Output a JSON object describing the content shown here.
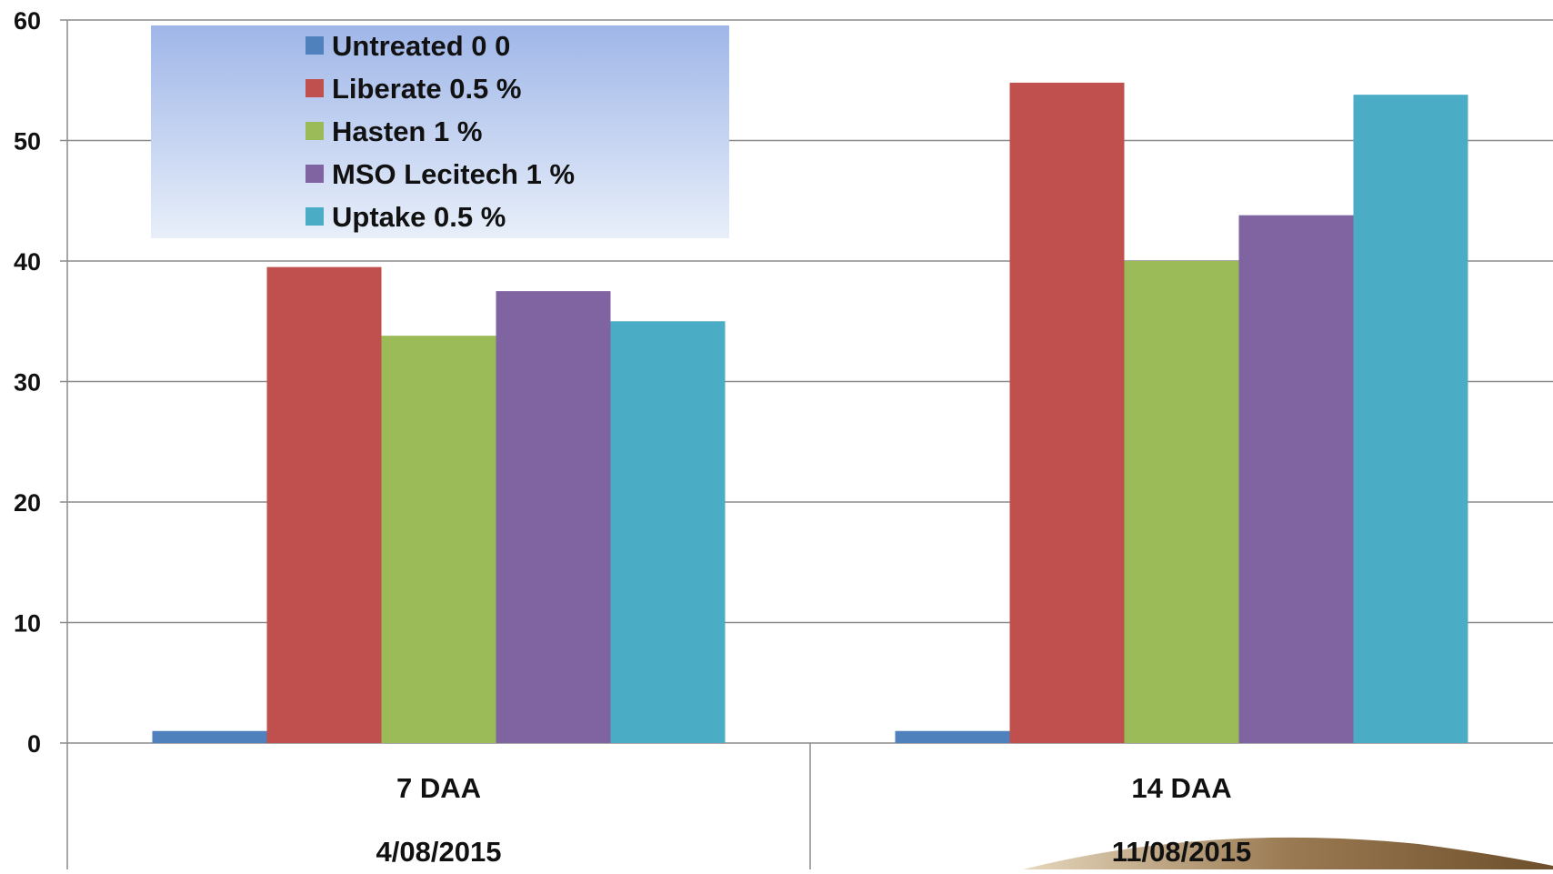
{
  "chart_data": {
    "type": "bar",
    "title": "",
    "xlabel": "",
    "ylabel": "",
    "ylim": [
      0,
      60
    ],
    "yticks": [
      0,
      10,
      20,
      30,
      40,
      50,
      60
    ],
    "grid": true,
    "legend_position": "top-left",
    "categories": [
      {
        "label": "7 DAA",
        "date": "4/08/2015"
      },
      {
        "label": "14 DAA",
        "date": "11/08/2015"
      }
    ],
    "series": [
      {
        "name": "Untreated 0 0",
        "color": "#4F81BD",
        "values": [
          1,
          1
        ]
      },
      {
        "name": "Liberate 0.5 %",
        "color": "#C0504D",
        "values": [
          39.5,
          54.8
        ]
      },
      {
        "name": "Hasten 1 %",
        "color": "#9BBB59",
        "values": [
          33.8,
          40
        ]
      },
      {
        "name": "MSO Lecitech 1 %",
        "color": "#8064A2",
        "values": [
          37.5,
          43.8
        ]
      },
      {
        "name": "Uptake 0.5 %",
        "color": "#4BACC6",
        "values": [
          35,
          53.8
        ]
      }
    ]
  }
}
